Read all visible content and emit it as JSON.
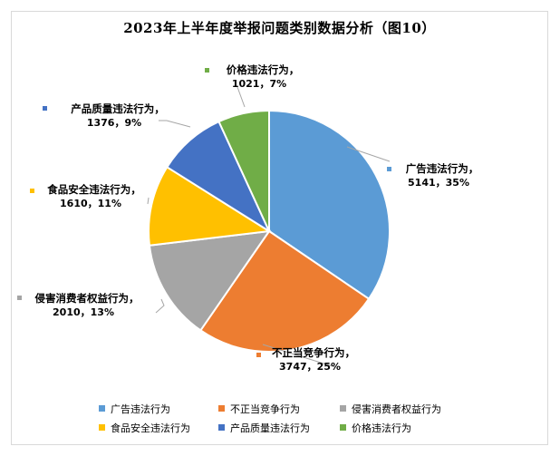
{
  "chart_data": {
    "type": "pie",
    "title": "2023年上半年度举报问题类别数据分析（图10）",
    "categories": [
      "广告违法行为",
      "不正当竞争行为",
      "侵害消费者权益行为",
      "食品安全违法行为",
      "产品质量违法行为",
      "价格违法行为"
    ],
    "values": [
      5141,
      3747,
      2010,
      1610,
      1376,
      1021
    ],
    "data_labels": [
      "5141，35%",
      "3747，25%",
      "2010，13%",
      "1610，11%",
      "1376，9%",
      "1021，7%"
    ],
    "colors": [
      "#5b9bd5",
      "#ed7d31",
      "#a5a5a5",
      "#ffc000",
      "#4472c4",
      "#70ad47"
    ],
    "legend_position": "bottom"
  }
}
